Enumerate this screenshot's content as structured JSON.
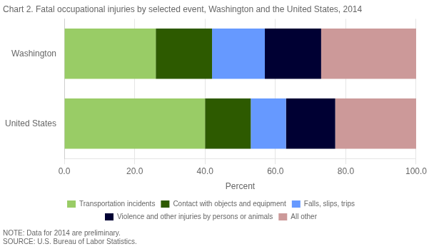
{
  "chart_data": {
    "type": "bar",
    "orientation": "horizontal",
    "stacked": true,
    "title": "Chart 2. Fatal occupational injuries by selected event, Washington and the United States, 2014",
    "categories": [
      "Washington",
      "United States"
    ],
    "series": [
      {
        "name": "Transportation incidents",
        "color": "#99cc66",
        "values": [
          26.0,
          40.0
        ]
      },
      {
        "name": "Contact with objects and equipment",
        "color": "#2d5a00",
        "values": [
          16.0,
          13.0
        ]
      },
      {
        "name": "Falls, slips, trips",
        "color": "#6699ff",
        "values": [
          15.0,
          10.0
        ]
      },
      {
        "name": "Violence and other injuries by persons or animals",
        "color": "#000033",
        "values": [
          16.0,
          14.0
        ]
      },
      {
        "name": "All other",
        "color": "#cc9999",
        "values": [
          27.0,
          23.0
        ]
      }
    ],
    "xlim": [
      0,
      100
    ],
    "xticks": [
      {
        "value": 0,
        "label": "0.0"
      },
      {
        "value": 20,
        "label": "20.0"
      },
      {
        "value": 40,
        "label": "40.0"
      },
      {
        "value": 60,
        "label": "60.0"
      },
      {
        "value": 80,
        "label": "80.0"
      },
      {
        "value": 100,
        "label": "100.0"
      }
    ],
    "xlabel": "Percent",
    "grid": true,
    "legend": "bottom",
    "annotations": [
      "NOTE: Data for 2014 are preliminary.",
      "SOURCE: U.S. Bureau of Labor Statistics."
    ]
  }
}
